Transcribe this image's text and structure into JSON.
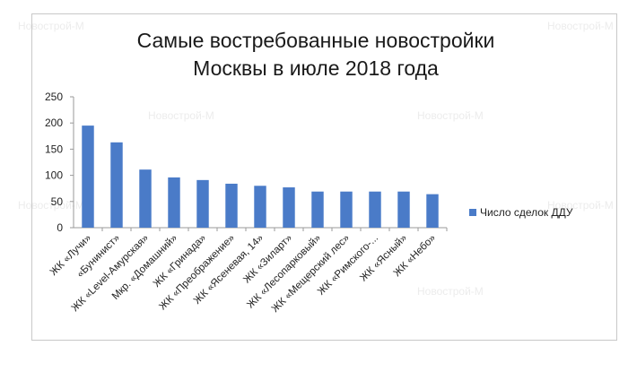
{
  "watermark_text": "Новострой-М",
  "chart_data": {
    "type": "bar",
    "title_lines": [
      "Самые востребованные новостройки",
      "Москвы в июле 2018 года"
    ],
    "categories": [
      "ЖК «Лучи»",
      "«Бунинист»",
      "ЖК «Level-Амурская»",
      "Мкр. «Домашний»",
      "ЖК «Гринада»",
      "ЖК «Преображение»",
      "ЖК «Ясеневая, 14»",
      "ЖК «Зиларт»",
      "ЖК «Лесопарковый»",
      "ЖК «Мещерский лес»",
      "ЖК «Римского-...",
      "ЖК «Ясный»",
      "ЖК «Небо»"
    ],
    "series": [
      {
        "name": "Число сделок ДДУ",
        "color": "#4a7bc8",
        "values": [
          195,
          163,
          111,
          96,
          91,
          84,
          80,
          77,
          69,
          69,
          69,
          69,
          64
        ]
      }
    ],
    "ylim": [
      0,
      250
    ],
    "yticks": [
      0,
      50,
      100,
      150,
      200,
      250
    ],
    "grid": false,
    "legend_position": "right"
  }
}
